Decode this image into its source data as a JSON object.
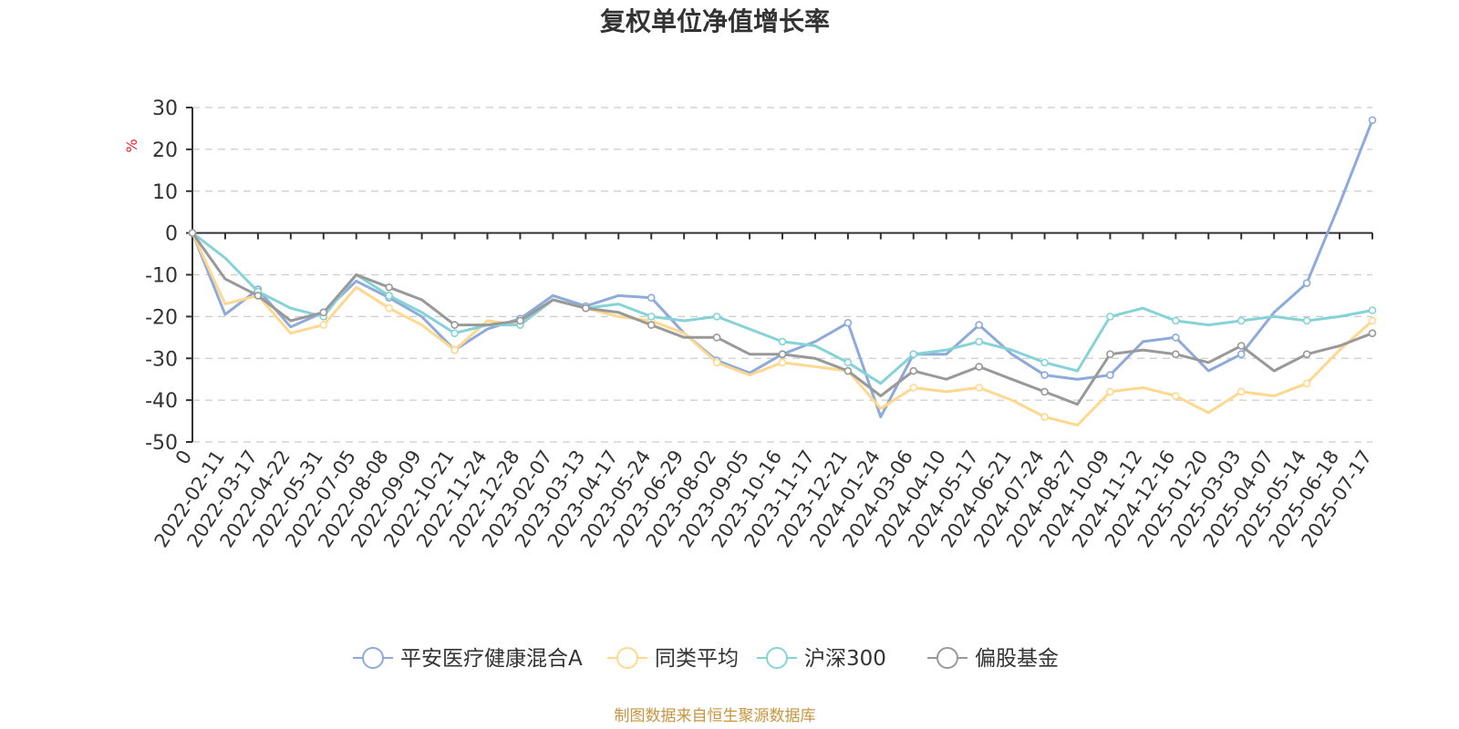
{
  "chart_data": {
    "type": "line",
    "title": "复权单位净值增长率",
    "ylabel": "%",
    "ylim": [
      -50,
      30
    ],
    "yticks": [
      30,
      20,
      10,
      0,
      -10,
      -20,
      -30,
      -40,
      -50
    ],
    "grid": true,
    "legend_position": "bottom-center",
    "x_tick_labels": [
      "0",
      "2022-02-11",
      "2022-03-17",
      "2022-04-22",
      "2022-05-31",
      "2022-07-05",
      "2022-08-08",
      "2022-09-09",
      "2022-10-21",
      "2022-11-24",
      "2022-12-28",
      "2023-02-07",
      "2023-03-13",
      "2023-04-17",
      "2023-05-24",
      "2023-06-29",
      "2023-08-02",
      "2023-09-05",
      "2023-10-16",
      "2023-11-17",
      "2023-12-21",
      "2024-01-24",
      "2024-03-06",
      "2024-04-10",
      "2024-05-17",
      "2024-06-21",
      "2024-07-24",
      "2024-08-27",
      "2024-10-09",
      "2024-11-12",
      "2024-12-16",
      "2025-01-20",
      "2025-03-03",
      "2025-04-07",
      "2025-05-14",
      "2025-06-18",
      "2025-07-17"
    ],
    "series": [
      {
        "name": "平安医疗健康混合A",
        "color": "#8eaadb",
        "values": [
          0,
          -19.5,
          -13.5,
          -22.5,
          -19,
          -11.5,
          -15.5,
          -20,
          -28,
          -23,
          -20.5,
          -15,
          -17.5,
          -15,
          -15.5,
          -24,
          -30.5,
          -33.5,
          -29,
          -26,
          -21.5,
          -44,
          -29,
          -29,
          -22,
          -29,
          -34,
          -35,
          -34,
          -26,
          -25,
          -33,
          -29,
          -19,
          -12,
          7,
          27
        ]
      },
      {
        "name": "同类平均",
        "color": "#ffd88f",
        "values": [
          0,
          -17,
          -15,
          -24,
          -22,
          -13,
          -18,
          -22,
          -28,
          -21,
          -22,
          -16,
          -18,
          -20,
          -21,
          -24,
          -31,
          -34,
          -31,
          -32,
          -33,
          -42,
          -37,
          -38,
          -37,
          -40,
          -44,
          -46,
          -38,
          -37,
          -39,
          -43,
          -38,
          -39,
          -36,
          -28,
          -21
        ]
      },
      {
        "name": "沪深300",
        "color": "#86d3d7",
        "values": [
          0,
          -6,
          -14,
          -18,
          -20,
          -10,
          -15,
          -19,
          -24,
          -22,
          -22,
          -16,
          -18,
          -17,
          -20,
          -21,
          -20,
          -23,
          -26,
          -27,
          -31,
          -36,
          -29,
          -28,
          -26,
          -28,
          -31,
          -33,
          -20,
          -18,
          -21,
          -22,
          -21,
          -20,
          -21,
          -20,
          -18.5
        ]
      },
      {
        "name": "偏股基金",
        "color": "#999999",
        "values": [
          0,
          -11,
          -15,
          -21,
          -19,
          -10,
          -13,
          -16,
          -22,
          -22,
          -21,
          -16,
          -18,
          -19,
          -22,
          -25,
          -25,
          -29,
          -29,
          -30,
          -33,
          -39,
          -33,
          -35,
          -32,
          -35,
          -38,
          -41,
          -29,
          -28,
          -29,
          -31,
          -27,
          -33,
          -29,
          -27,
          -24
        ]
      }
    ]
  },
  "source_note": "制图数据来自恒生聚源数据库"
}
